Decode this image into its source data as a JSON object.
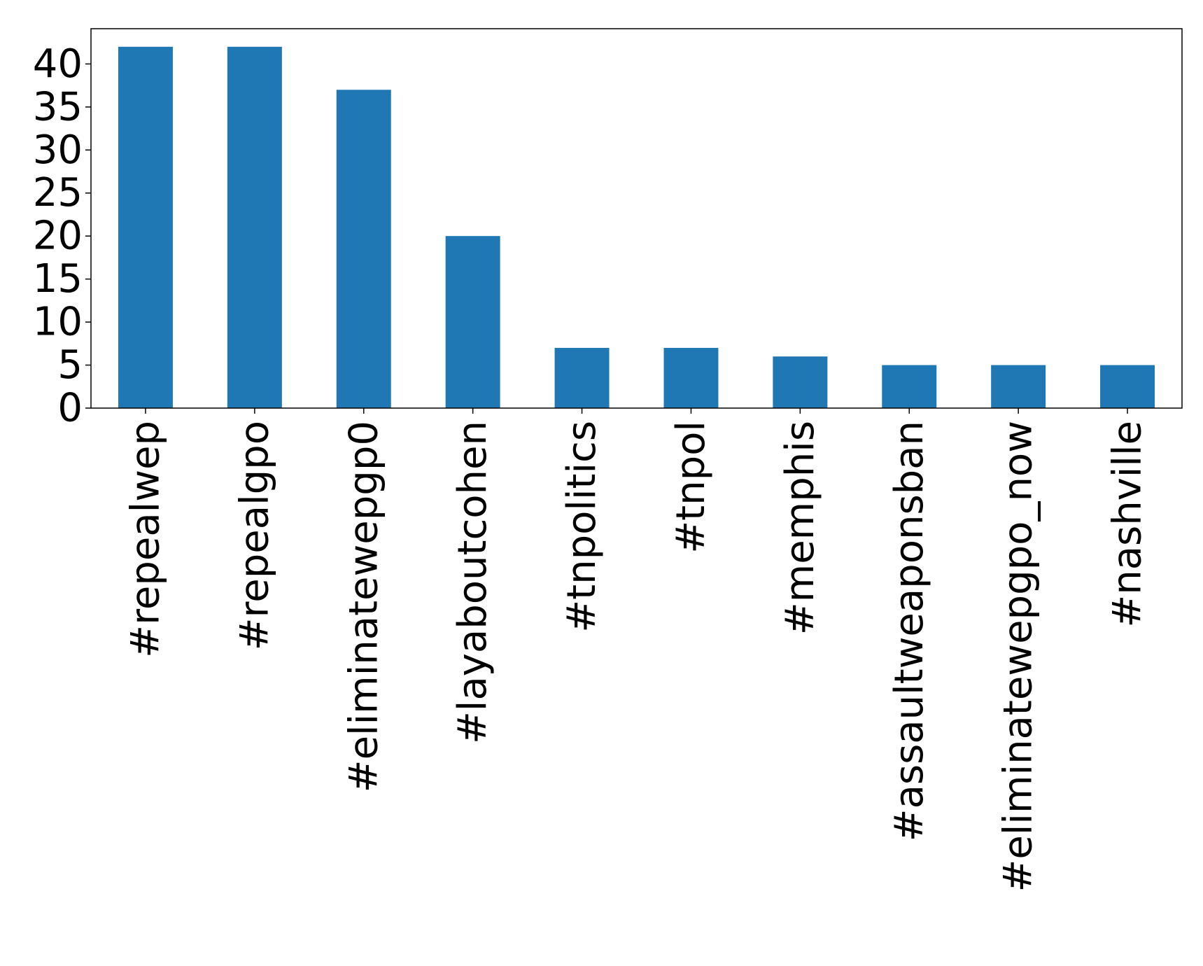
{
  "chart_data": {
    "type": "bar",
    "title": "",
    "xlabel": "",
    "ylabel": "",
    "categories": [
      "#repealwep",
      "#repealgpo",
      "#eliminatewepgp0",
      "#layaboutcohen",
      "#tnpolitics",
      "#tnpol",
      "#memphis",
      "#assaultweaponsban",
      "#eliminatewepgpo_now",
      "#nashville"
    ],
    "values": [
      42,
      42,
      37,
      20,
      7,
      7,
      6,
      5,
      5,
      5
    ],
    "ylim": [
      0,
      44.1
    ],
    "yticks": [
      0,
      5,
      10,
      15,
      20,
      25,
      30,
      35,
      40
    ],
    "ytick_labels": [
      "0",
      "5",
      "10",
      "15",
      "20",
      "25",
      "30",
      "35",
      "40"
    ],
    "bar_color": "#1f77b4",
    "grid": false,
    "legend": "none"
  }
}
